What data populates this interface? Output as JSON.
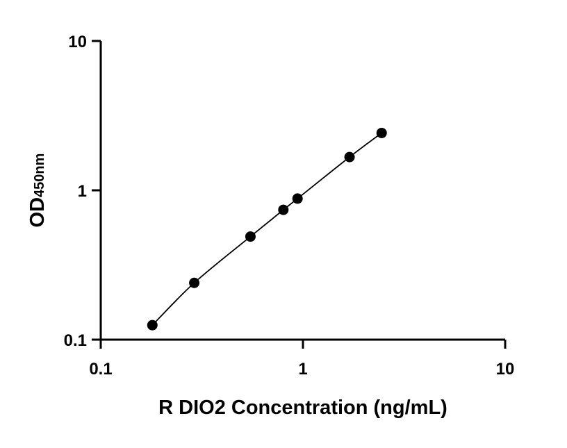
{
  "chart_data": {
    "type": "scatter",
    "title": "",
    "xlabel": "R DIO2 Concentration (ng/mL)",
    "ylabel": "OD",
    "ylabel_subscript": "450nm",
    "x_scale": "log",
    "y_scale": "log",
    "xlim": [
      0.1,
      10
    ],
    "ylim": [
      0.1,
      10
    ],
    "x_ticks": [
      "0.1",
      "1",
      "10"
    ],
    "y_ticks": [
      "0.1",
      "1",
      "10"
    ],
    "grid": false,
    "legend": "none",
    "series": [
      {
        "points": [
          {
            "x": 0.18,
            "y": 0.125
          },
          {
            "x": 0.29,
            "y": 0.24
          },
          {
            "x": 0.55,
            "y": 0.49
          },
          {
            "x": 0.8,
            "y": 0.74
          },
          {
            "x": 0.94,
            "y": 0.88
          },
          {
            "x": 1.7,
            "y": 1.67
          },
          {
            "x": 2.45,
            "y": 2.42
          }
        ],
        "color": "#000000",
        "fit_curve": true
      }
    ]
  }
}
